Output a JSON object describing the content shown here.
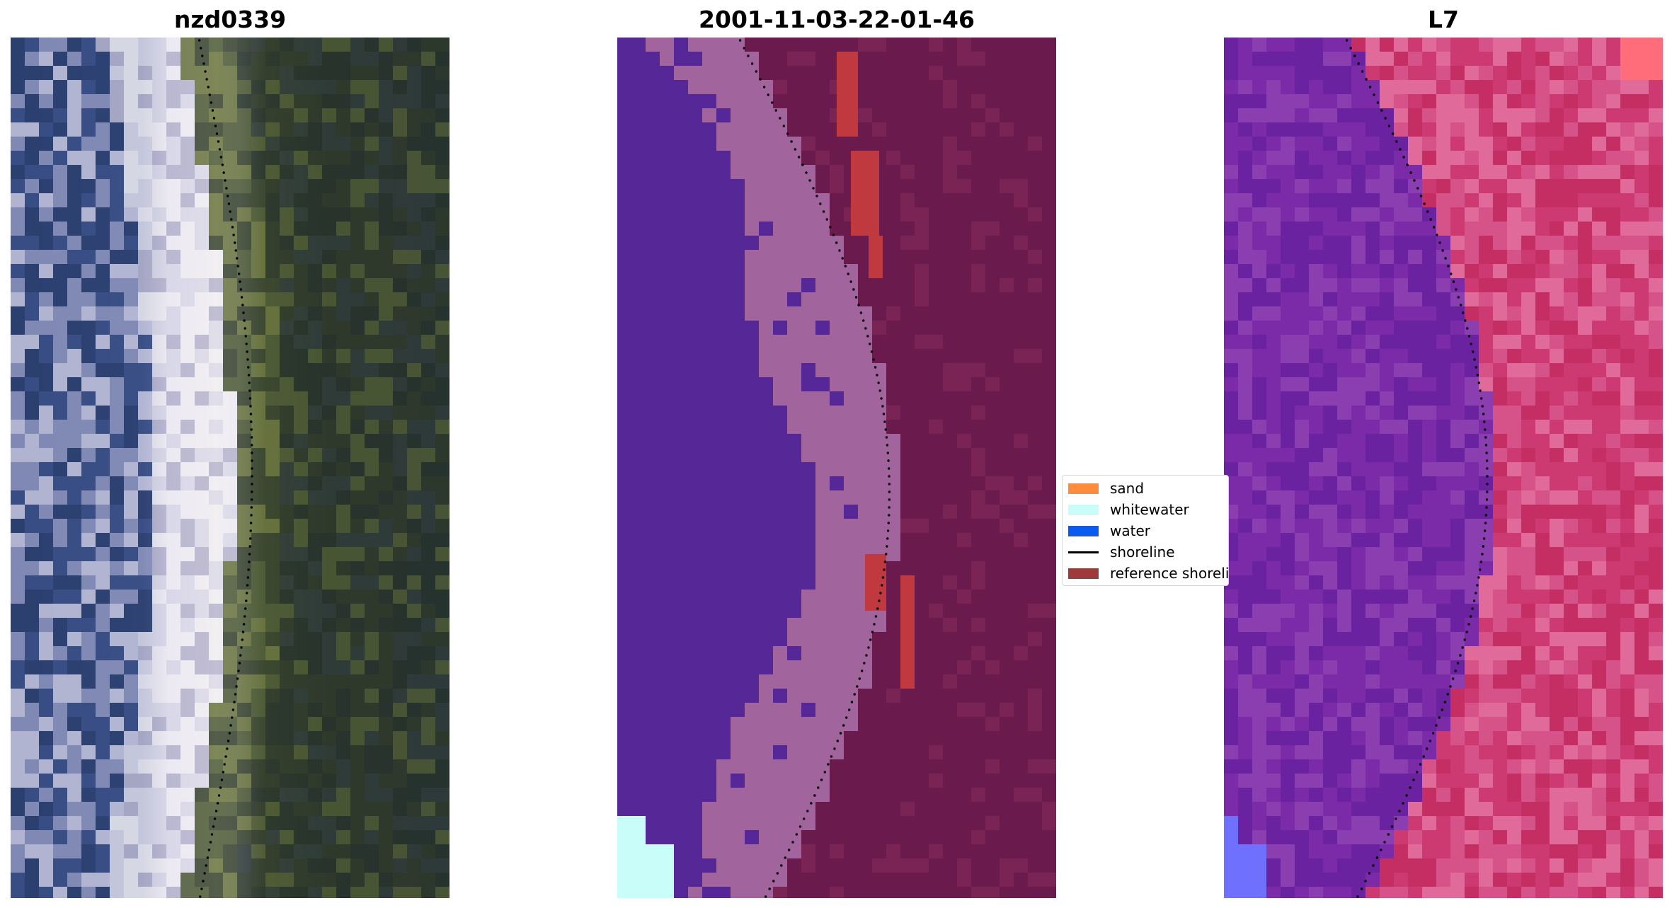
{
  "panels": [
    {
      "title": "nzd0339"
    },
    {
      "title": "2001-11-03-22-01-46"
    },
    {
      "title": "L7"
    }
  ],
  "legend": {
    "items": [
      {
        "label": "sand",
        "kind": "patch",
        "color": "#ff8c3a"
      },
      {
        "label": "whitewater",
        "kind": "patch",
        "color": "#c9fdfa"
      },
      {
        "label": "water",
        "kind": "patch",
        "color": "#0a5cf0"
      },
      {
        "label": "shoreline",
        "kind": "line",
        "color": "#000000"
      },
      {
        "label": "reference shoreline",
        "kind": "patch",
        "color": "#a03a3a"
      }
    ]
  },
  "colors": {
    "satellite_water": "#2b3f6e",
    "satellite_wave": "#e8e6f2",
    "satellite_vegetation": "#2a3526",
    "class_water": "#552797",
    "class_sand": "#a2649d",
    "class_land": "#6b1a4e",
    "class_reference": "#c0393e",
    "class_whitewater": "#c9fdfa",
    "falsecolor_water": "#7b2ba8",
    "falsecolor_land": "#cd3a72",
    "falsecolor_wave": "#7070ff"
  }
}
